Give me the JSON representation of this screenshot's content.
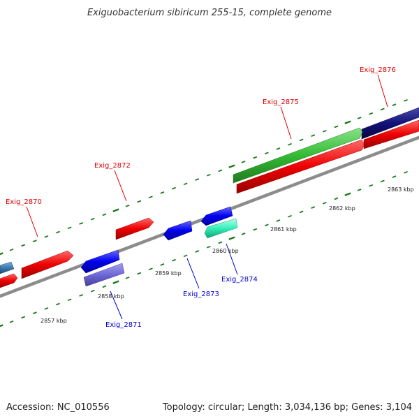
{
  "title": "Exiguobacterium sibiricum 255-15, complete genome",
  "footer": {
    "accession": "Accession: NC_010556",
    "summary": "Topology: circular; Length: 3,034,136 bp; Genes: 3,104"
  },
  "colors": {
    "backbone": "#8c8c8c",
    "ticks": "#1f7a1f",
    "forward_label": "#dd0000",
    "reverse_label": "#0000cc"
  },
  "scale_labels": [
    "2857 kbp",
    "2858 kbp",
    "2859 kbp",
    "2860 kbp",
    "2861 kbp",
    "2862 kbp",
    "2863 kbp"
  ],
  "gene_labels": {
    "forward": [
      "Exig_2870",
      "Exig_2872",
      "Exig_2875",
      "Exig_2876"
    ],
    "reverse": [
      "Exig_2871",
      "Exig_2873",
      "Exig_2874"
    ]
  }
}
